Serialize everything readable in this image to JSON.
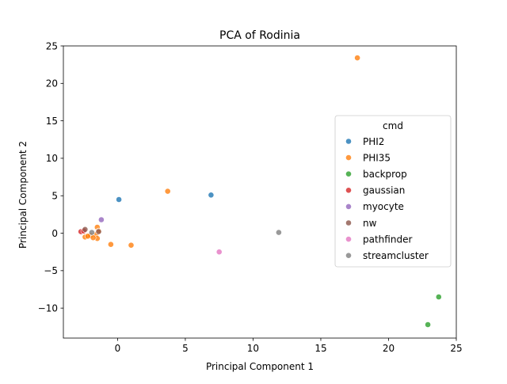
{
  "chart_data": {
    "type": "scatter",
    "title": "PCA of Rodinia",
    "xlabel": "Principal Component 1",
    "ylabel": "Principal Component 2",
    "xlim": [
      -4,
      25
    ],
    "ylim": [
      -14,
      25
    ],
    "xticks": [
      0,
      5,
      10,
      15,
      20,
      25
    ],
    "yticks": [
      -10,
      -5,
      0,
      5,
      10,
      15,
      20,
      25
    ],
    "grid": false,
    "legend": {
      "title": "cmd",
      "placement": "center-right"
    },
    "series": [
      {
        "name": "PHI2",
        "color": "#1f77b4",
        "points": [
          [
            0.1,
            4.5
          ],
          [
            6.9,
            5.1
          ]
        ]
      },
      {
        "name": "PHI35",
        "color": "#ff7f0e",
        "points": [
          [
            17.7,
            23.4
          ],
          [
            3.7,
            5.6
          ],
          [
            -0.5,
            -1.5
          ],
          [
            1.0,
            -1.6
          ],
          [
            -1.5,
            0.8
          ],
          [
            -1.4,
            0.3
          ],
          [
            -1.6,
            -0.2
          ],
          [
            -1.5,
            -0.7
          ],
          [
            -2.4,
            -0.5
          ],
          [
            -2.0,
            -0.3
          ],
          [
            -1.8,
            -0.6
          ],
          [
            -2.2,
            -0.4
          ]
        ]
      },
      {
        "name": "backprop",
        "color": "#2ca02c",
        "points": [
          [
            23.7,
            -8.5
          ],
          [
            22.9,
            -12.2
          ]
        ]
      },
      {
        "name": "gaussian",
        "color": "#d62728",
        "points": [
          [
            -2.7,
            0.2
          ],
          [
            -2.5,
            0.3
          ]
        ]
      },
      {
        "name": "myocyte",
        "color": "#9467bd",
        "points": [
          [
            -1.2,
            1.8
          ]
        ]
      },
      {
        "name": "nw",
        "color": "#8c564b",
        "points": [
          [
            -2.4,
            0.5
          ],
          [
            -1.4,
            0.2
          ]
        ]
      },
      {
        "name": "pathfinder",
        "color": "#e377c2",
        "points": [
          [
            7.5,
            -2.5
          ]
        ]
      },
      {
        "name": "streamcluster",
        "color": "#7f7f7f",
        "points": [
          [
            11.9,
            0.1
          ],
          [
            -1.9,
            0.1
          ]
        ]
      }
    ]
  }
}
